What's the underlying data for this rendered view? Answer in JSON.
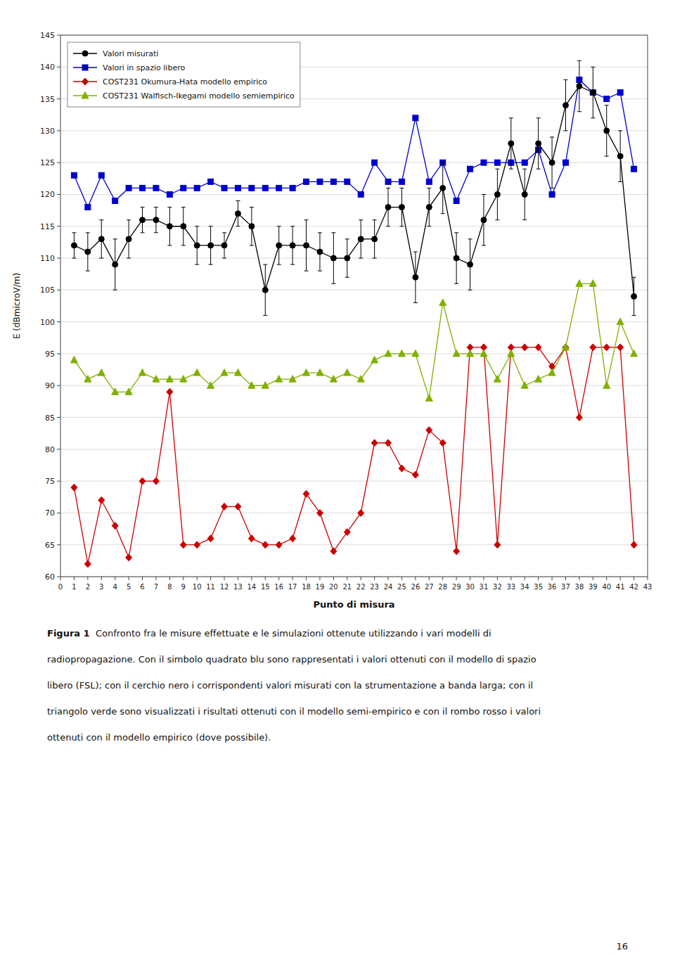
{
  "chart_data": {
    "type": "line",
    "x_label": "Punto di misura",
    "y_label": "E (dBmicroV/m)",
    "xlim": [
      0,
      43
    ],
    "ylim": [
      60,
      145
    ],
    "xticks": [
      0,
      1,
      2,
      3,
      4,
      5,
      6,
      7,
      8,
      9,
      10,
      11,
      12,
      13,
      14,
      15,
      16,
      17,
      18,
      19,
      20,
      21,
      22,
      23,
      24,
      25,
      26,
      27,
      28,
      29,
      30,
      31,
      32,
      33,
      34,
      35,
      36,
      37,
      38,
      39,
      40,
      41,
      42,
      43
    ],
    "yticks": [
      60,
      65,
      70,
      75,
      80,
      85,
      90,
      95,
      100,
      105,
      110,
      115,
      120,
      125,
      130,
      135,
      140,
      145
    ],
    "grid": "y",
    "legend": "upper left",
    "x": [
      1,
      2,
      3,
      4,
      5,
      6,
      7,
      8,
      9,
      10,
      11,
      12,
      13,
      14,
      15,
      16,
      17,
      18,
      19,
      20,
      21,
      22,
      23,
      24,
      25,
      26,
      27,
      28,
      29,
      30,
      31,
      32,
      33,
      34,
      35,
      36,
      37,
      38,
      39,
      40,
      41,
      42
    ],
    "series": [
      {
        "name": "Valori misurati",
        "color": "#000000",
        "marker": "circle",
        "values": [
          112,
          111,
          113,
          109,
          113,
          116,
          116,
          115,
          115,
          112,
          112,
          112,
          117,
          115,
          105,
          112,
          112,
          112,
          111,
          110,
          110,
          113,
          113,
          118,
          118,
          107,
          118,
          121,
          110,
          109,
          116,
          120,
          128,
          120,
          128,
          125,
          134,
          137,
          136,
          130,
          126,
          104
        ],
        "errors": [
          2,
          3,
          3,
          4,
          3,
          2,
          2,
          3,
          3,
          3,
          3,
          2,
          2,
          3,
          4,
          3,
          3,
          4,
          3,
          4,
          3,
          3,
          3,
          3,
          3,
          4,
          3,
          4,
          4,
          4,
          4,
          4,
          4,
          4,
          4,
          4,
          4,
          4,
          4,
          4,
          4,
          3
        ]
      },
      {
        "name": "Valori in spazio libero",
        "color": "#0000cd",
        "marker": "square",
        "values": [
          123,
          118,
          123,
          119,
          121,
          121,
          121,
          120,
          121,
          121,
          122,
          121,
          121,
          121,
          121,
          121,
          121,
          122,
          122,
          122,
          122,
          120,
          125,
          122,
          122,
          132,
          122,
          125,
          119,
          124,
          125,
          125,
          125,
          125,
          127,
          120,
          125,
          138,
          136,
          135,
          136,
          124
        ]
      },
      {
        "name": "COST231 Okumura-Hata modello empirico",
        "color": "#cc0000",
        "marker": "diamond",
        "values": [
          74,
          62,
          72,
          68,
          63,
          75,
          75,
          89,
          65,
          65,
          66,
          71,
          71,
          66,
          65,
          65,
          66,
          73,
          70,
          64,
          67,
          70,
          81,
          81,
          77,
          76,
          83,
          81,
          64,
          96,
          96,
          65,
          96,
          96,
          96,
          93,
          96,
          85,
          96,
          96,
          96,
          65
        ]
      },
      {
        "name": "COST231 Walfisch-Ikegami modello semiempirico",
        "color": "#80b000",
        "marker": "triangle",
        "values": [
          94,
          91,
          92,
          89,
          89,
          92,
          91,
          91,
          91,
          92,
          90,
          92,
          92,
          90,
          90,
          91,
          91,
          92,
          92,
          91,
          92,
          91,
          94,
          95,
          95,
          95,
          88,
          103,
          95,
          95,
          95,
          91,
          95,
          90,
          91,
          92,
          96,
          106,
          106,
          90,
          100,
          95
        ]
      }
    ],
    "annotations": [
      "Figura 1",
      "  Confronto fra le misure effettuate e le simulazioni ottenute utilizzando i vari modelli di",
      "radiopropagazione. Con il simbolo quadrato blu sono rappresentati i valori ottenuti con il modello di spazio",
      "libero (FSL); con il cerchio nero i corrispondenti valori misurati con la strumentazione a banda larga; con il",
      "triangolo verde sono visualizzati i risultati ottenuti con il modello semi-empirico e con il rombo rosso i valori",
      "ottenuti con il modello empirico (dove possibile).",
      "16"
    ]
  }
}
